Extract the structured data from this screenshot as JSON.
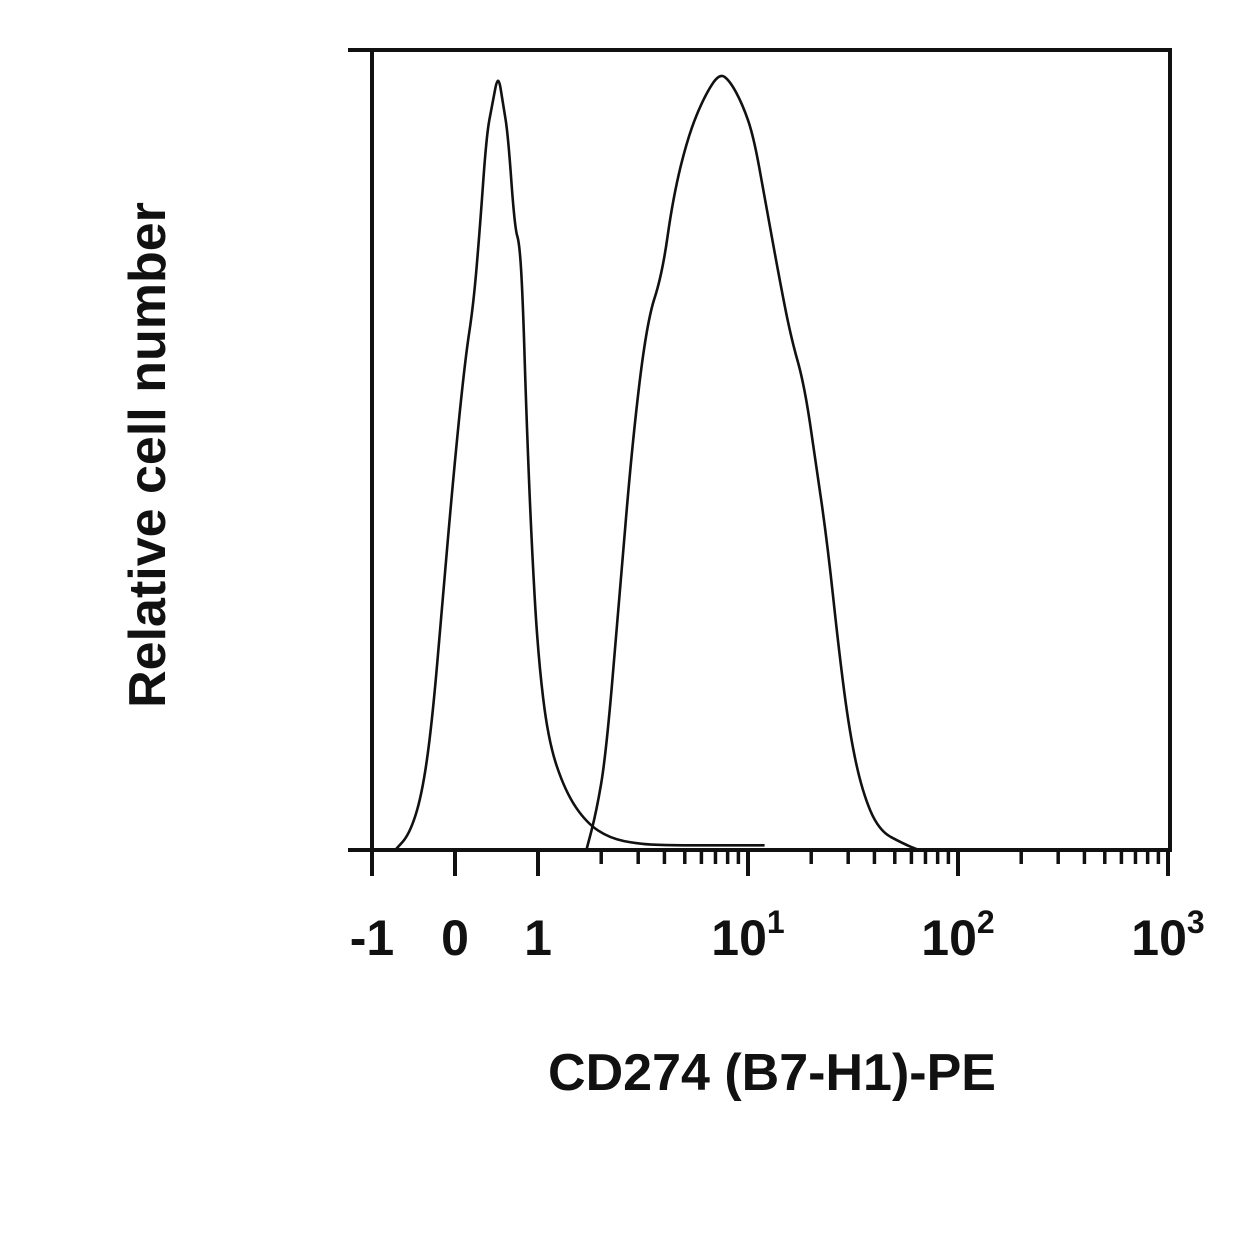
{
  "chart_data": {
    "type": "area",
    "title": "",
    "xlabel": "CD274 (B7-H1)-PE",
    "ylabel": "Relative cell number",
    "x_scale": "biexponential",
    "xlim": [
      -1,
      1000
    ],
    "ylim": [
      0,
      1
    ],
    "grid": false,
    "legend": "none",
    "x_tick_labels": [
      {
        "value": -1,
        "base": "-1",
        "exp": ""
      },
      {
        "value": 0,
        "base": "0",
        "exp": ""
      },
      {
        "value": 1,
        "base": "1",
        "exp": ""
      },
      {
        "value": 10,
        "base": "10",
        "exp": "1"
      },
      {
        "value": 100,
        "base": "10",
        "exp": "2"
      },
      {
        "value": 1000,
        "base": "10",
        "exp": "3"
      }
    ],
    "series": [
      {
        "fill": "none",
        "stroke": "#111111",
        "points": [
          [
            -0.72,
            0.0
          ],
          [
            -0.55,
            0.02
          ],
          [
            -0.4,
            0.07
          ],
          [
            -0.28,
            0.16
          ],
          [
            -0.15,
            0.32
          ],
          [
            -0.02,
            0.48
          ],
          [
            0.12,
            0.63
          ],
          [
            0.22,
            0.7
          ],
          [
            0.3,
            0.8
          ],
          [
            0.38,
            0.92
          ],
          [
            0.45,
            0.96
          ],
          [
            0.52,
            1.0
          ],
          [
            0.58,
            0.96
          ],
          [
            0.64,
            0.92
          ],
          [
            0.72,
            0.8
          ],
          [
            0.78,
            0.78
          ],
          [
            0.82,
            0.7
          ],
          [
            0.86,
            0.56
          ],
          [
            0.92,
            0.4
          ],
          [
            1.0,
            0.25
          ],
          [
            1.12,
            0.14
          ],
          [
            1.35,
            0.075
          ],
          [
            1.7,
            0.035
          ],
          [
            2.2,
            0.015
          ],
          [
            3.0,
            0.008
          ],
          [
            4.0,
            0.006
          ],
          [
            6.0,
            0.006
          ],
          [
            9.0,
            0.006
          ],
          [
            12.0,
            0.006
          ]
        ]
      },
      {
        "fill": "none",
        "stroke": "#111111",
        "points": [
          [
            1.7,
            0.0
          ],
          [
            1.9,
            0.05
          ],
          [
            2.1,
            0.12
          ],
          [
            2.4,
            0.3
          ],
          [
            2.8,
            0.52
          ],
          [
            3.3,
            0.68
          ],
          [
            3.9,
            0.74
          ],
          [
            4.4,
            0.84
          ],
          [
            5.2,
            0.92
          ],
          [
            6.2,
            0.97
          ],
          [
            7.3,
            1.0
          ],
          [
            8.2,
            0.99
          ],
          [
            9.4,
            0.96
          ],
          [
            10.6,
            0.92
          ],
          [
            12.0,
            0.84
          ],
          [
            14.0,
            0.74
          ],
          [
            16.0,
            0.66
          ],
          [
            18.5,
            0.6
          ],
          [
            21.0,
            0.5
          ],
          [
            24.0,
            0.39
          ],
          [
            27.0,
            0.26
          ],
          [
            30.5,
            0.15
          ],
          [
            35.0,
            0.075
          ],
          [
            42.0,
            0.025
          ],
          [
            55.0,
            0.008
          ],
          [
            65.0,
            0.0
          ]
        ]
      }
    ]
  }
}
